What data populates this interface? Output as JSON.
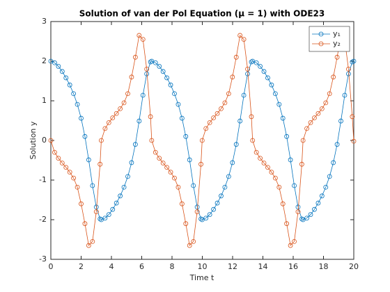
{
  "chart_data": {
    "type": "line",
    "title": "Solution of van der Pol Equation (μ = 1) with ODE23",
    "x_label": "Time t",
    "y_label": "Solution y",
    "x": [
      0,
      0.25,
      0.5,
      0.75,
      1,
      1.25,
      1.5,
      1.75,
      2,
      2.25,
      2.5,
      2.75,
      3,
      3.25,
      3.33,
      3.58,
      3.83,
      4.08,
      4.33,
      4.58,
      4.83,
      5.08,
      5.33,
      5.58,
      5.83,
      6.08,
      6.33,
      6.58,
      6.66,
      6.91,
      7.16,
      7.41,
      7.66,
      7.91,
      8.16,
      8.41,
      8.66,
      8.91,
      9.16,
      9.41,
      9.66,
      9.91,
      9.99,
      10.24,
      10.49,
      10.74,
      10.99,
      11.24,
      11.49,
      11.74,
      11.99,
      12.24,
      12.49,
      12.74,
      12.99,
      13.24,
      13.32,
      13.57,
      13.82,
      14.07,
      14.32,
      14.57,
      14.82,
      15.07,
      15.32,
      15.57,
      15.82,
      16.07,
      16.32,
      16.57,
      16.65,
      16.9,
      17.15,
      17.4,
      17.65,
      17.9,
      18.15,
      18.4,
      18.65,
      18.9,
      19.15,
      19.4,
      19.65,
      19.9,
      20
    ],
    "series": [
      {
        "name": "y₁",
        "color": "#0072bd",
        "values": [
          2.0,
          1.96,
          1.87,
          1.74,
          1.58,
          1.4,
          1.18,
          0.91,
          0.56,
          0.1,
          -0.49,
          -1.14,
          -1.68,
          -1.98,
          -2.0,
          -1.96,
          -1.87,
          -1.74,
          -1.58,
          -1.4,
          -1.18,
          -0.91,
          -0.56,
          -0.1,
          0.49,
          1.14,
          1.68,
          1.98,
          2.0,
          1.96,
          1.87,
          1.74,
          1.58,
          1.4,
          1.18,
          0.91,
          0.56,
          0.1,
          -0.49,
          -1.14,
          -1.68,
          -1.98,
          -2.0,
          -1.96,
          -1.87,
          -1.74,
          -1.58,
          -1.4,
          -1.18,
          -0.91,
          -0.56,
          -0.1,
          0.49,
          1.14,
          1.68,
          1.98,
          2.0,
          1.96,
          1.87,
          1.74,
          1.58,
          1.4,
          1.18,
          0.91,
          0.56,
          0.1,
          -0.49,
          -1.14,
          -1.68,
          -1.98,
          -2.0,
          -1.96,
          -1.87,
          -1.74,
          -1.58,
          -1.4,
          -1.18,
          -0.91,
          -0.56,
          -0.1,
          0.49,
          1.14,
          1.68,
          1.98,
          2.0
        ]
      },
      {
        "name": "y₂",
        "color": "#d95319",
        "values": [
          0,
          -0.3,
          -0.45,
          -0.57,
          -0.68,
          -0.8,
          -0.95,
          -1.18,
          -1.6,
          -2.1,
          -2.65,
          -2.55,
          -1.8,
          -0.6,
          0,
          0.3,
          0.45,
          0.57,
          0.68,
          0.8,
          0.95,
          1.18,
          1.6,
          2.1,
          2.65,
          2.55,
          1.8,
          0.6,
          0,
          -0.3,
          -0.45,
          -0.57,
          -0.68,
          -0.8,
          -0.95,
          -1.18,
          -1.6,
          -2.1,
          -2.65,
          -2.55,
          -1.8,
          -0.6,
          0,
          0.3,
          0.45,
          0.57,
          0.68,
          0.8,
          0.95,
          1.18,
          1.6,
          2.1,
          2.65,
          2.55,
          1.8,
          0.6,
          0,
          -0.3,
          -0.45,
          -0.57,
          -0.68,
          -0.8,
          -0.95,
          -1.18,
          -1.6,
          -2.1,
          -2.65,
          -2.55,
          -1.8,
          -0.6,
          0,
          0.3,
          0.45,
          0.57,
          0.68,
          0.8,
          0.95,
          1.18,
          1.6,
          2.1,
          2.65,
          2.55,
          1.8,
          0.6,
          -0.02
        ]
      }
    ],
    "xlim": [
      0,
      20
    ],
    "xticks": [
      0,
      2,
      4,
      6,
      8,
      10,
      12,
      14,
      16,
      18,
      20
    ],
    "ylim": [
      -3,
      3
    ],
    "yticks": [
      -3,
      -2,
      -1,
      0,
      1,
      2,
      3
    ],
    "grid": false,
    "legend": "northeast",
    "marker": "circle"
  }
}
